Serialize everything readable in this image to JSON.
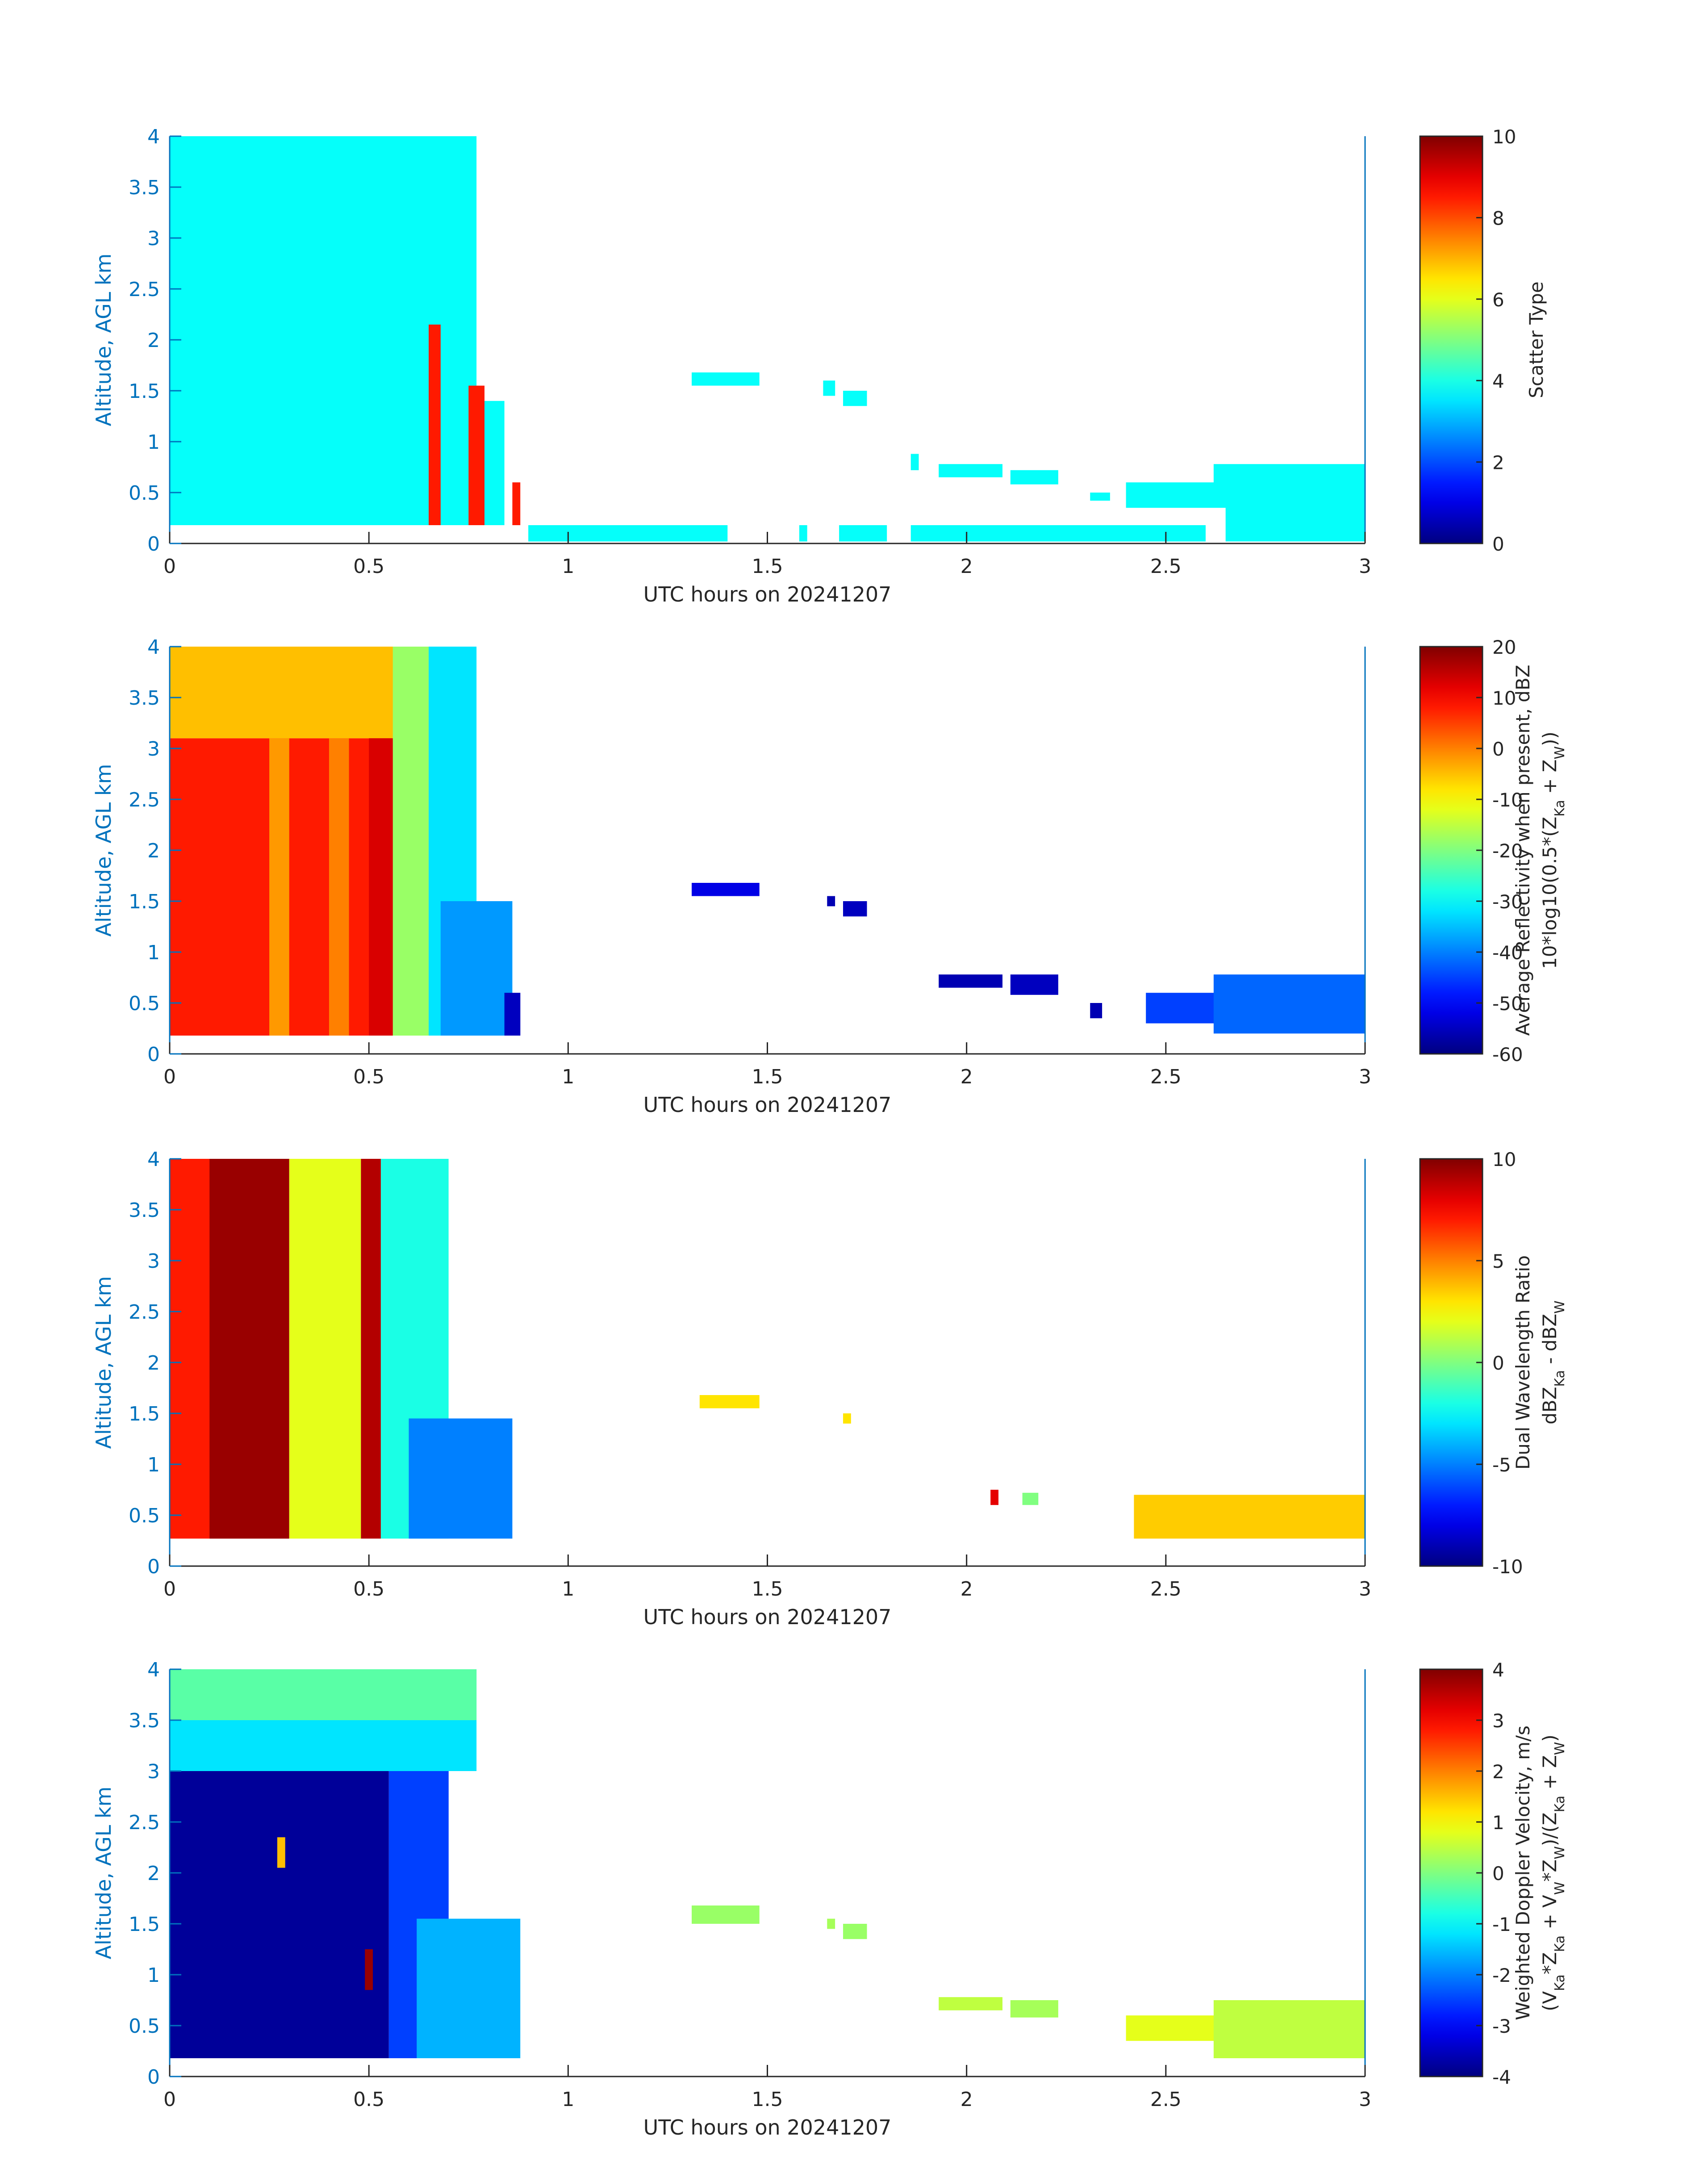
{
  "figure": {
    "panel_count": 4
  },
  "chart_data": [
    {
      "type": "heatmap",
      "title": "",
      "xlabel": "UTC hours on 20241207",
      "ylabel": "Altitude, AGL km",
      "xlim": [
        0,
        3
      ],
      "ylim": [
        0,
        4
      ],
      "xticks": [
        0,
        0.5,
        1,
        1.5,
        2,
        2.5,
        3
      ],
      "xtick_labels": [
        "0",
        "0.5",
        "1",
        "1.5",
        "2",
        "2.5",
        "3"
      ],
      "yticks": [
        0,
        0.5,
        1,
        1.5,
        2,
        2.5,
        3,
        3.5,
        4
      ],
      "ytick_labels": [
        "0",
        "0.5",
        "1",
        "1.5",
        "2",
        "2.5",
        "3",
        "3.5",
        "4"
      ],
      "colorbar": {
        "label_lines": [
          "Scatter Type"
        ],
        "lim": [
          0,
          10
        ],
        "ticks": [
          0,
          2,
          4,
          6,
          8,
          10
        ],
        "tick_labels": [
          "0",
          "2",
          "4",
          "6",
          "8",
          "10"
        ],
        "colormap": "jet"
      },
      "regions": [
        {
          "x": [
            0,
            0.77
          ],
          "y": [
            0.18,
            4.0
          ],
          "value": 3.8
        },
        {
          "x": [
            0.6,
            0.68
          ],
          "y": [
            0.18,
            2.2
          ],
          "value": 3.8
        },
        {
          "x": [
            0.68,
            0.84
          ],
          "y": [
            0.18,
            1.4
          ],
          "value": 3.8
        },
        {
          "x": [
            0.65,
            0.68
          ],
          "y": [
            0.18,
            2.15
          ],
          "value": 8.5
        },
        {
          "x": [
            0.75,
            0.79
          ],
          "y": [
            0.18,
            1.55
          ],
          "value": 8.5
        },
        {
          "x": [
            0.86,
            0.88
          ],
          "y": [
            0.18,
            0.6
          ],
          "value": 8.5
        },
        {
          "x": [
            0.9,
            1.4
          ],
          "y": [
            0.02,
            0.18
          ],
          "value": 3.8
        },
        {
          "x": [
            1.31,
            1.48
          ],
          "y": [
            1.55,
            1.68
          ],
          "value": 3.8
        },
        {
          "x": [
            1.64,
            1.67
          ],
          "y": [
            1.45,
            1.6
          ],
          "value": 3.8
        },
        {
          "x": [
            1.69,
            1.75
          ],
          "y": [
            1.35,
            1.5
          ],
          "value": 3.8
        },
        {
          "x": [
            1.58,
            1.6
          ],
          "y": [
            0.02,
            0.18
          ],
          "value": 3.8
        },
        {
          "x": [
            1.68,
            1.8
          ],
          "y": [
            0.02,
            0.18
          ],
          "value": 3.8
        },
        {
          "x": [
            1.86,
            2.6
          ],
          "y": [
            0.02,
            0.18
          ],
          "value": 3.8
        },
        {
          "x": [
            1.86,
            1.88
          ],
          "y": [
            0.72,
            0.88
          ],
          "value": 3.8
        },
        {
          "x": [
            1.93,
            2.09
          ],
          "y": [
            0.65,
            0.78
          ],
          "value": 3.8
        },
        {
          "x": [
            2.11,
            2.23
          ],
          "y": [
            0.58,
            0.72
          ],
          "value": 3.8
        },
        {
          "x": [
            2.31,
            2.36
          ],
          "y": [
            0.42,
            0.5
          ],
          "value": 3.8
        },
        {
          "x": [
            2.4,
            3.0
          ],
          "y": [
            0.35,
            0.6
          ],
          "value": 3.8
        },
        {
          "x": [
            2.62,
            3.0
          ],
          "y": [
            0.55,
            0.78
          ],
          "value": 3.8
        },
        {
          "x": [
            2.65,
            3.0
          ],
          "y": [
            0.02,
            0.45
          ],
          "value": 3.8
        }
      ]
    },
    {
      "type": "heatmap",
      "title": "",
      "xlabel": "UTC hours on 20241207",
      "ylabel": "Altitude, AGL km",
      "xlim": [
        0,
        3
      ],
      "ylim": [
        0,
        4
      ],
      "xticks": [
        0,
        0.5,
        1,
        1.5,
        2,
        2.5,
        3
      ],
      "xtick_labels": [
        "0",
        "0.5",
        "1",
        "1.5",
        "2",
        "2.5",
        "3"
      ],
      "yticks": [
        0,
        0.5,
        1,
        1.5,
        2,
        2.5,
        3,
        3.5,
        4
      ],
      "ytick_labels": [
        "0",
        "0.5",
        "1",
        "1.5",
        "2",
        "2.5",
        "3",
        "3.5",
        "4"
      ],
      "colorbar": {
        "label_lines": [
          "Average Reflectivity when present, dBZ",
          "10*log10(0.5*(Z",
          "Ka",
          " + Z",
          "W",
          "))"
        ],
        "lim": [
          -60,
          20
        ],
        "ticks": [
          -60,
          -50,
          -40,
          -30,
          -20,
          -10,
          0,
          10,
          20
        ],
        "tick_labels": [
          "-60",
          "-50",
          "-40",
          "-30",
          "-20",
          "-10",
          "0",
          "10",
          "20"
        ],
        "colormap": "jet"
      },
      "regions": [
        {
          "x": [
            0,
            0.6
          ],
          "y": [
            0.18,
            3.1
          ],
          "value": 8
        },
        {
          "x": [
            0,
            0.6
          ],
          "y": [
            3.1,
            4.0
          ],
          "value": -5
        },
        {
          "x": [
            0.25,
            0.3
          ],
          "y": [
            0.18,
            3.1
          ],
          "value": -2
        },
        {
          "x": [
            0.4,
            0.45
          ],
          "y": [
            0.18,
            3.1
          ],
          "value": 0
        },
        {
          "x": [
            0.5,
            0.56
          ],
          "y": [
            0.18,
            3.1
          ],
          "value": 13
        },
        {
          "x": [
            0.56,
            0.65
          ],
          "y": [
            0.18,
            4.0
          ],
          "value": -18
        },
        {
          "x": [
            0.65,
            0.77
          ],
          "y": [
            0.18,
            4.0
          ],
          "value": -32
        },
        {
          "x": [
            0.68,
            0.86
          ],
          "y": [
            0.18,
            1.5
          ],
          "value": -38
        },
        {
          "x": [
            0.84,
            0.88
          ],
          "y": [
            0.18,
            0.6
          ],
          "value": -55
        },
        {
          "x": [
            1.31,
            1.48
          ],
          "y": [
            1.55,
            1.68
          ],
          "value": -52
        },
        {
          "x": [
            1.65,
            1.67
          ],
          "y": [
            1.45,
            1.55
          ],
          "value": -56
        },
        {
          "x": [
            1.69,
            1.75
          ],
          "y": [
            1.35,
            1.5
          ],
          "value": -55
        },
        {
          "x": [
            1.93,
            2.09
          ],
          "y": [
            0.65,
            0.78
          ],
          "value": -56
        },
        {
          "x": [
            2.11,
            2.23
          ],
          "y": [
            0.58,
            0.78
          ],
          "value": -55
        },
        {
          "x": [
            2.31,
            2.34
          ],
          "y": [
            0.35,
            0.5
          ],
          "value": -56
        },
        {
          "x": [
            2.45,
            2.68
          ],
          "y": [
            0.3,
            0.6
          ],
          "value": -45
        },
        {
          "x": [
            2.62,
            3.0
          ],
          "y": [
            0.2,
            0.78
          ],
          "value": -42
        }
      ]
    },
    {
      "type": "heatmap",
      "title": "",
      "xlabel": "UTC hours on 20241207",
      "ylabel": "Altitude, AGL km",
      "xlim": [
        0,
        3
      ],
      "ylim": [
        0,
        4
      ],
      "xticks": [
        0,
        0.5,
        1,
        1.5,
        2,
        2.5,
        3
      ],
      "xtick_labels": [
        "0",
        "0.5",
        "1",
        "1.5",
        "2",
        "2.5",
        "3"
      ],
      "yticks": [
        0,
        0.5,
        1,
        1.5,
        2,
        2.5,
        3,
        3.5,
        4
      ],
      "ytick_labels": [
        "0",
        "0.5",
        "1",
        "1.5",
        "2",
        "2.5",
        "3",
        "3.5",
        "4"
      ],
      "colorbar": {
        "label_lines": [
          "Dual Wavelength Ratio",
          "dBZ",
          "Ka",
          " - dBZ",
          "W"
        ],
        "lim": [
          -10,
          10
        ],
        "ticks": [
          -10,
          -5,
          0,
          5,
          10
        ],
        "tick_labels": [
          "-10",
          "-5",
          "0",
          "5",
          "10"
        ],
        "colormap": "jet"
      },
      "regions": [
        {
          "x": [
            0,
            0.3
          ],
          "y": [
            0.27,
            4.0
          ],
          "value": 7
        },
        {
          "x": [
            0.1,
            0.3
          ],
          "y": [
            0.27,
            4.0
          ],
          "value": 9.5
        },
        {
          "x": [
            0.3,
            0.48
          ],
          "y": [
            0.27,
            4.0
          ],
          "value": 2
        },
        {
          "x": [
            0.48,
            0.53
          ],
          "y": [
            0.27,
            4.0
          ],
          "value": 9
        },
        {
          "x": [
            0.53,
            0.7
          ],
          "y": [
            0.27,
            4.0
          ],
          "value": -2
        },
        {
          "x": [
            0.6,
            0.86
          ],
          "y": [
            0.27,
            1.45
          ],
          "value": -5
        },
        {
          "x": [
            1.33,
            1.48
          ],
          "y": [
            1.55,
            1.68
          ],
          "value": 3
        },
        {
          "x": [
            1.69,
            1.71
          ],
          "y": [
            1.4,
            1.5
          ],
          "value": 3
        },
        {
          "x": [
            2.06,
            2.08
          ],
          "y": [
            0.6,
            0.75
          ],
          "value": 8
        },
        {
          "x": [
            2.14,
            2.18
          ],
          "y": [
            0.6,
            0.72
          ],
          "value": 0
        },
        {
          "x": [
            2.42,
            3.0
          ],
          "y": [
            0.27,
            0.7
          ],
          "value": 3.5
        }
      ]
    },
    {
      "type": "heatmap",
      "title": "",
      "xlabel": "UTC hours on 20241207",
      "ylabel": "Altitude, AGL km",
      "xlim": [
        0,
        3
      ],
      "ylim": [
        0,
        4
      ],
      "xticks": [
        0,
        0.5,
        1,
        1.5,
        2,
        2.5,
        3
      ],
      "xtick_labels": [
        "0",
        "0.5",
        "1",
        "1.5",
        "2",
        "2.5",
        "3"
      ],
      "yticks": [
        0,
        0.5,
        1,
        1.5,
        2,
        2.5,
        3,
        3.5,
        4
      ],
      "ytick_labels": [
        "0",
        "0.5",
        "1",
        "1.5",
        "2",
        "2.5",
        "3",
        "3.5",
        "4"
      ],
      "colorbar": {
        "label_lines": [
          "Weighted Doppler Velocity, m/s",
          "(V",
          "Ka",
          "*Z",
          "Ka",
          " + V",
          "W",
          "*Z",
          "W",
          ")/(Z",
          "Ka",
          " + Z",
          "W",
          ")"
        ],
        "lim": [
          -4,
          4
        ],
        "ticks": [
          -4,
          -3,
          -2,
          -1,
          0,
          1,
          2,
          3,
          4
        ],
        "tick_labels": [
          "-4",
          "-3",
          "-2",
          "-1",
          "0",
          "1",
          "2",
          "3",
          "4"
        ],
        "colormap": "jet"
      },
      "regions": [
        {
          "x": [
            0,
            0.77
          ],
          "y": [
            3.0,
            4.0
          ],
          "value": -1.2
        },
        {
          "x": [
            0,
            0.77
          ],
          "y": [
            3.5,
            4.0
          ],
          "value": -0.3
        },
        {
          "x": [
            0,
            0.55
          ],
          "y": [
            0.18,
            3.0
          ],
          "value": -3.8
        },
        {
          "x": [
            0.55,
            0.7
          ],
          "y": [
            0.18,
            3.0
          ],
          "value": -2.5
        },
        {
          "x": [
            0.62,
            0.88
          ],
          "y": [
            0.18,
            1.55
          ],
          "value": -1.6
        },
        {
          "x": [
            0.27,
            0.29
          ],
          "y": [
            2.05,
            2.35
          ],
          "value": 1.5
        },
        {
          "x": [
            0.49,
            0.51
          ],
          "y": [
            0.85,
            1.25
          ],
          "value": 3.8
        },
        {
          "x": [
            1.31,
            1.48
          ],
          "y": [
            1.5,
            1.68
          ],
          "value": 0.2
        },
        {
          "x": [
            1.65,
            1.67
          ],
          "y": [
            1.45,
            1.55
          ],
          "value": 0.3
        },
        {
          "x": [
            1.69,
            1.75
          ],
          "y": [
            1.35,
            1.5
          ],
          "value": 0.2
        },
        {
          "x": [
            1.93,
            2.09
          ],
          "y": [
            0.65,
            0.78
          ],
          "value": 0.5
        },
        {
          "x": [
            2.11,
            2.23
          ],
          "y": [
            0.58,
            0.75
          ],
          "value": 0.3
        },
        {
          "x": [
            2.4,
            2.68
          ],
          "y": [
            0.35,
            0.6
          ],
          "value": 0.8
        },
        {
          "x": [
            2.62,
            3.0
          ],
          "y": [
            0.18,
            0.75
          ],
          "value": 0.5
        }
      ]
    }
  ]
}
